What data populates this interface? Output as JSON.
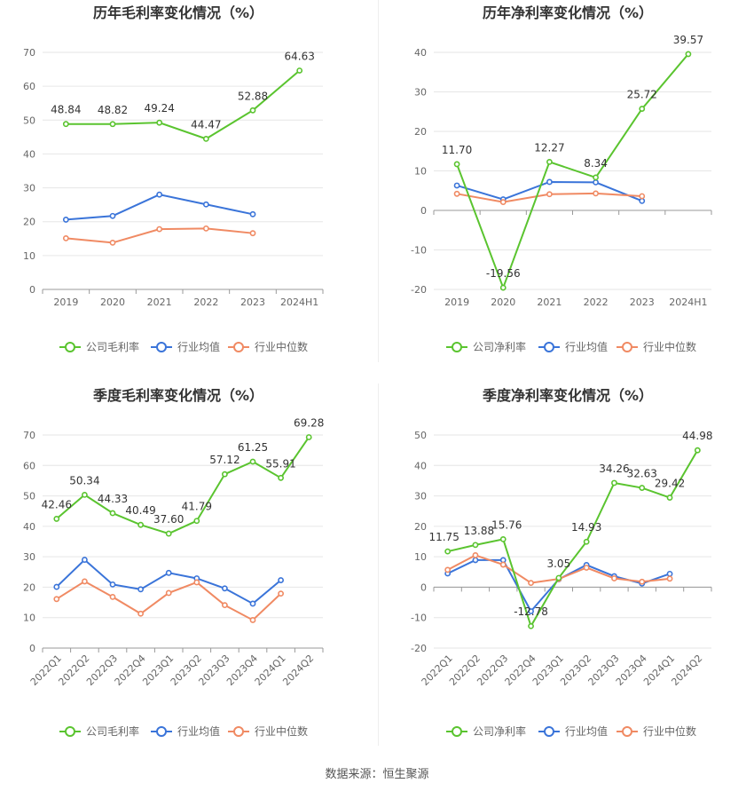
{
  "source": "数据来源：恒生聚源",
  "colors": {
    "company": "#5ac42f",
    "avg": "#3a74d9",
    "median": "#f08a63",
    "grid": "#e6e6e6",
    "axis": "#999999",
    "text": "#666666",
    "title": "#333333"
  },
  "chart_data": [
    {
      "type": "line",
      "title": "历年毛利率变化情况（%）",
      "categories": [
        "2019",
        "2020",
        "2021",
        "2022",
        "2023",
        "2024H1"
      ],
      "ylim": [
        0,
        70
      ],
      "yticks": [
        0,
        10,
        20,
        30,
        40,
        50,
        60,
        70
      ],
      "rotate_x": false,
      "legend": [
        "公司毛利率",
        "行业均值",
        "行业中位数"
      ],
      "series": [
        {
          "name": "公司毛利率",
          "values": [
            48.84,
            48.82,
            49.24,
            44.47,
            52.88,
            64.63
          ],
          "labels": [
            "48.84",
            "48.82",
            "49.24",
            "44.47",
            "52.88",
            "64.63"
          ]
        },
        {
          "name": "行业均值",
          "values": [
            20.6,
            21.7,
            28.0,
            25.1,
            22.2,
            null
          ]
        },
        {
          "name": "行业中位数",
          "values": [
            15.1,
            13.8,
            17.8,
            18.0,
            16.6,
            null
          ]
        }
      ]
    },
    {
      "type": "line",
      "title": "历年净利率变化情况（%）",
      "categories": [
        "2019",
        "2020",
        "2021",
        "2022",
        "2023",
        "2024H1"
      ],
      "ylim": [
        -20,
        40
      ],
      "yticks": [
        -20,
        -10,
        0,
        10,
        20,
        30,
        40
      ],
      "rotate_x": false,
      "legend": [
        "公司净利率",
        "行业均值",
        "行业中位数"
      ],
      "series": [
        {
          "name": "公司净利率",
          "values": [
            11.7,
            -19.56,
            12.27,
            8.34,
            25.72,
            39.57
          ],
          "labels": [
            "11.70",
            "-19.56",
            "12.27",
            "8.34",
            "25.72",
            "39.57"
          ]
        },
        {
          "name": "行业均值",
          "values": [
            6.3,
            2.8,
            7.2,
            7.1,
            2.4,
            null
          ]
        },
        {
          "name": "行业中位数",
          "values": [
            4.2,
            2.1,
            4.1,
            4.3,
            3.6,
            null
          ]
        }
      ]
    },
    {
      "type": "line",
      "title": "季度毛利率变化情况（%）",
      "categories": [
        "2022Q1",
        "2022Q2",
        "2022Q3",
        "2022Q4",
        "2023Q1",
        "2023Q2",
        "2023Q3",
        "2023Q4",
        "2024Q1",
        "2024Q2"
      ],
      "ylim": [
        0,
        70
      ],
      "yticks": [
        0,
        10,
        20,
        30,
        40,
        50,
        60,
        70
      ],
      "rotate_x": true,
      "legend": [
        "公司毛利率",
        "行业均值",
        "行业中位数"
      ],
      "series": [
        {
          "name": "公司毛利率",
          "values": [
            42.46,
            50.34,
            44.33,
            40.49,
            37.6,
            41.79,
            57.12,
            61.25,
            55.91,
            69.28
          ],
          "labels": [
            "42.46",
            "50.34",
            "44.33",
            "40.49",
            "37.60",
            "41.79",
            "57.12",
            "61.25",
            "55.91",
            "69.28"
          ]
        },
        {
          "name": "行业均值",
          "values": [
            20.1,
            29.0,
            20.9,
            19.3,
            24.7,
            22.9,
            19.6,
            14.6,
            22.3,
            null
          ]
        },
        {
          "name": "行业中位数",
          "values": [
            16.1,
            21.9,
            16.8,
            11.3,
            18.1,
            21.6,
            14.1,
            9.2,
            17.9,
            null
          ]
        }
      ]
    },
    {
      "type": "line",
      "title": "季度净利率变化情况（%）",
      "categories": [
        "2022Q1",
        "2022Q2",
        "2022Q3",
        "2022Q4",
        "2023Q1",
        "2023Q2",
        "2023Q3",
        "2023Q4",
        "2024Q1",
        "2024Q2"
      ],
      "ylim": [
        -20,
        50
      ],
      "yticks": [
        -20,
        -10,
        0,
        10,
        20,
        30,
        40,
        50
      ],
      "rotate_x": true,
      "legend": [
        "公司净利率",
        "行业均值",
        "行业中位数"
      ],
      "series": [
        {
          "name": "公司净利率",
          "values": [
            11.75,
            13.88,
            15.76,
            -12.78,
            3.05,
            14.93,
            34.26,
            32.63,
            29.42,
            44.98
          ],
          "labels": [
            "11.75",
            "13.88",
            "15.76",
            "-12.78",
            "3.05",
            "14.93",
            "34.26",
            "32.63",
            "29.42",
            "44.98"
          ]
        },
        {
          "name": "行业均值",
          "values": [
            4.5,
            8.9,
            8.9,
            -7.9,
            2.6,
            7.3,
            3.6,
            1.2,
            4.4,
            null
          ]
        },
        {
          "name": "行业中位数",
          "values": [
            5.7,
            10.5,
            7.4,
            1.4,
            2.7,
            6.4,
            2.9,
            1.8,
            2.8,
            null
          ]
        }
      ]
    }
  ]
}
